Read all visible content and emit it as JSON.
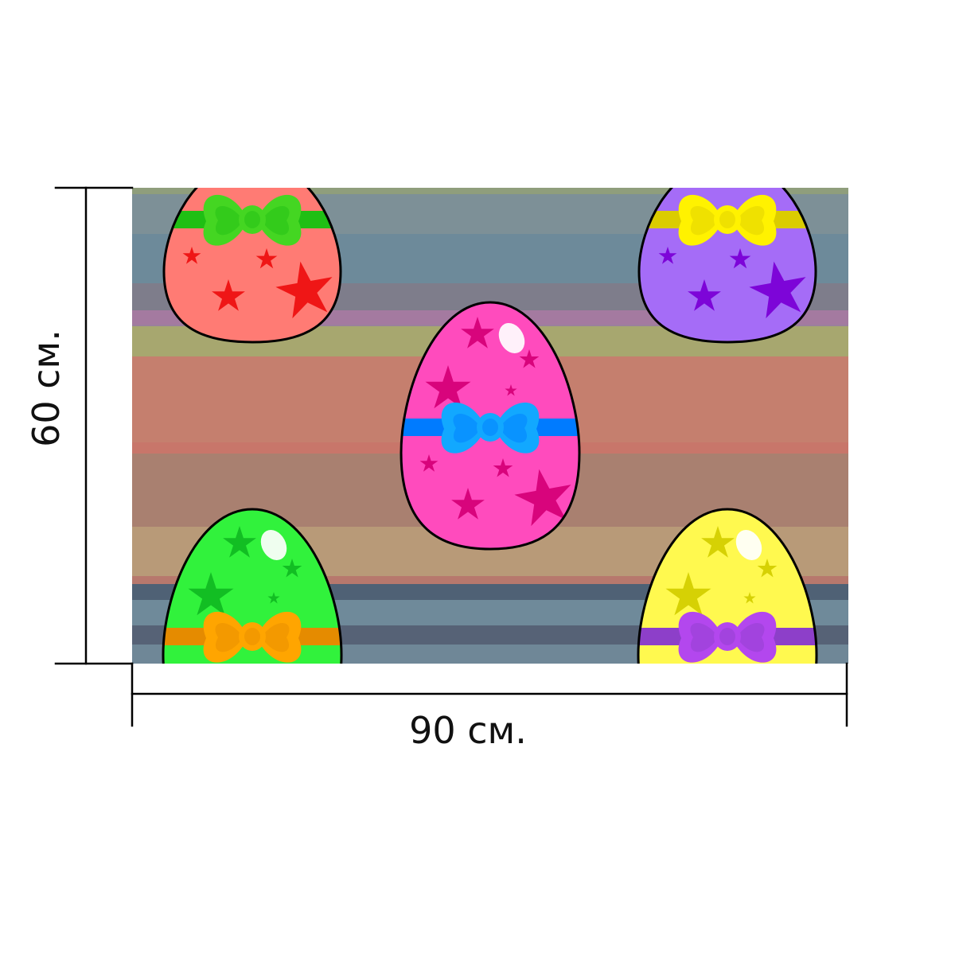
{
  "dimensions": {
    "height_label": "60 см.",
    "width_label": "90 см."
  },
  "artwork": {
    "background_stripes": [
      "#8f9e7c",
      "#7d9097",
      "#6d8a9a",
      "#7e7d8b",
      "#9b7f9c",
      "#a7a76f",
      "#c57f6e",
      "#957a9d",
      "#a98070",
      "#b89a78",
      "#4f6175",
      "#6f8a9a"
    ],
    "eggs": [
      {
        "id": "red",
        "fill": "#ff7b74",
        "bow": "#44d622",
        "ribbon": "#1fbf14",
        "stars": "#ee1111"
      },
      {
        "id": "purple",
        "fill": "#a56cf7",
        "bow": "#fff200",
        "ribbon": "#dbcc00",
        "stars": "#7a00d6"
      },
      {
        "id": "pink",
        "fill": "#ff4bbd",
        "bow": "#12a8ff",
        "ribbon": "#007bff",
        "stars": "#d60078"
      },
      {
        "id": "green",
        "fill": "#31f23c",
        "bow": "#ffa500",
        "ribbon": "#e58b00",
        "stars": "#11bb22"
      },
      {
        "id": "yellow",
        "fill": "#fff94f",
        "bow": "#b347ee",
        "ribbon": "#8d3fc9",
        "stars": "#d4cf00"
      }
    ],
    "icons": [
      "dimension-line-icon",
      "easter-egg-icon",
      "bow-icon",
      "star-icon"
    ]
  }
}
